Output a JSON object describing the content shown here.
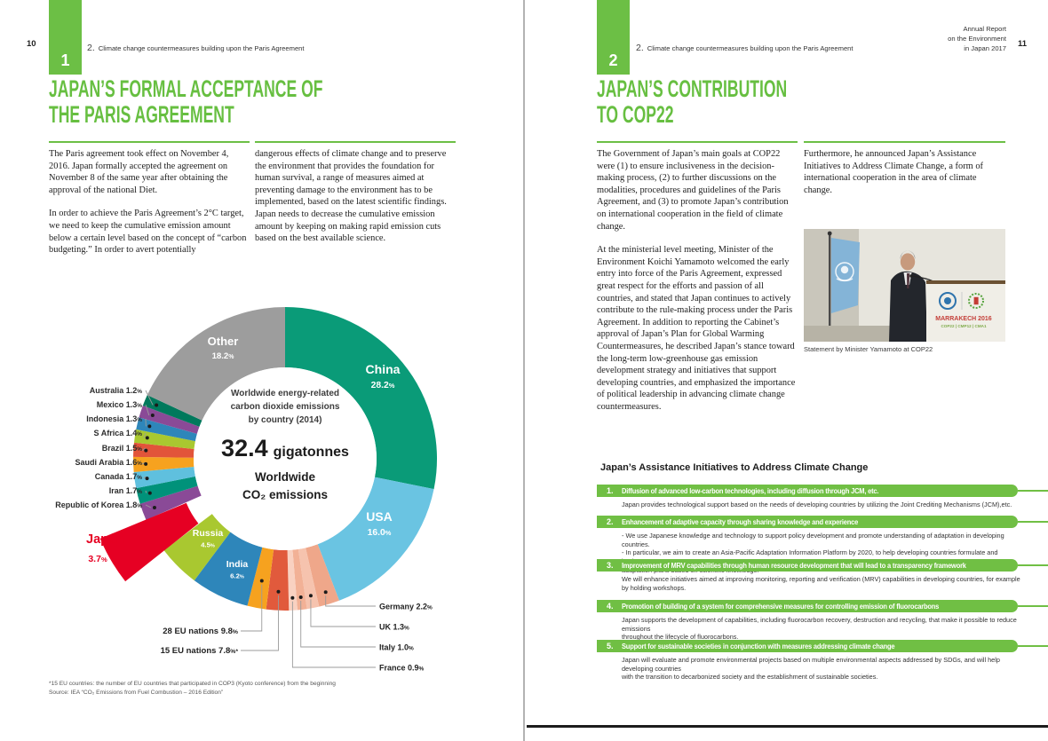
{
  "colors": {
    "accent_green": "#6cbf45",
    "bar_green": "#70bf44",
    "japan_red": "#e60023",
    "gutter_gray": "#b3b3b3",
    "body_text": "#1e1e1e"
  },
  "left_page": {
    "page_number": "10",
    "section_number": "1",
    "running_header_number": "2.",
    "running_header": "Climate change countermeasures building upon the Paris Agreement",
    "title_line1": "JAPAN’S FORMAL ACCEPTANCE OF",
    "title_line2": "THE PARIS AGREEMENT",
    "col1_p1": "The Paris agreement took effect on November 4, 2016. Japan formally accepted the agreement on November 8 of the same year after obtaining the approval of the national Diet.",
    "col1_p2": "In order to achieve the Paris Agreement’s 2°C target, we need to keep the cumulative emission amount below a certain level based on the concept of “carbon budgeting.” In order to avert potentially",
    "col2_p1": "dangerous effects of climate change and to preserve the environment that provides the foundation for human survival, a range of measures aimed at preventing damage to the environment has to be implemented, based on the latest scientific findings. Japan needs to decrease the cumulative emission amount by keeping on making rapid emission cuts based on the best available science.",
    "footnote_line1": "*15 EU countries: the number of EU countries that participated in COP3 (Kyoto conference) from the beginning",
    "footnote_line2": "Source: IEA “CO₂ Emissions from Fuel Combustion – 2016 Edition”"
  },
  "chart_data": {
    "type": "pie",
    "title": "Worldwide energy-related\ncarbon dioxide emissions\nby country (2014)",
    "center_value": "32.4",
    "center_unit": "gigatonnes",
    "center_caption": "Worldwide\nCO₂ emissions",
    "legend_position": "callout labels around donut",
    "note": "pct = share shown on chart; arc = drawn arc segment (EU overlays split into member sub-slices)",
    "slices": [
      {
        "id": "china",
        "label": "China",
        "pct": "28.2",
        "arc": 28.2,
        "color": "#0a9b78",
        "label_pos": "inside"
      },
      {
        "id": "usa",
        "label": "USA",
        "pct": "16.0",
        "arc": 16.0,
        "color": "#6ac4e2",
        "label_pos": "inside"
      },
      {
        "id": "germany",
        "label": "Germany",
        "pct": "2.2",
        "arc": 2.2,
        "color": "#efa78a",
        "label_pos": "right"
      },
      {
        "id": "uk",
        "label": "UK",
        "pct": "1.3",
        "arc": 1.3,
        "color": "#f6c3ae",
        "label_pos": "right"
      },
      {
        "id": "italy",
        "label": "Italy",
        "pct": "1.0",
        "arc": 1.0,
        "color": "#f2b196",
        "label_pos": "right"
      },
      {
        "id": "france",
        "label": "France",
        "pct": "0.9",
        "arc": 0.9,
        "color": "#f9d1c1",
        "label_pos": "right"
      },
      {
        "id": "eu15_rest",
        "label": "15 EU nations",
        "pct": "7.8",
        "suffix": "*",
        "arc": 2.4,
        "color": "#e15a3c",
        "label_pos": "bottom"
      },
      {
        "id": "eu28_rest",
        "label": "28 EU nations",
        "pct": "9.8",
        "arc": 2.0,
        "color": "#f6a21f",
        "label_pos": "bottom"
      },
      {
        "id": "india",
        "label": "India",
        "pct": "6.2",
        "arc": 6.2,
        "color": "#2e86ba",
        "label_pos": "inside"
      },
      {
        "id": "russia",
        "label": "Russia",
        "pct": "4.5",
        "arc": 4.5,
        "color": "#a9c830",
        "label_pos": "inside"
      },
      {
        "id": "japan",
        "label": "Japan",
        "pct": "3.7",
        "arc": 3.7,
        "color": "#e60023",
        "label_pos": "exploded"
      },
      {
        "id": "korea",
        "label": "Republic of Korea",
        "pct": "1.8",
        "arc": 1.8,
        "color": "#8a4a97",
        "label_pos": "left"
      },
      {
        "id": "iran",
        "label": "Iran",
        "pct": "1.7",
        "arc": 1.7,
        "color": "#00927a",
        "label_pos": "left"
      },
      {
        "id": "canada",
        "label": "Canada",
        "pct": "1.7",
        "arc": 1.7,
        "color": "#5fc0de",
        "label_pos": "left"
      },
      {
        "id": "saudi_arabia",
        "label": "Saudi Arabia",
        "pct": "1.6",
        "arc": 1.6,
        "color": "#f6a21f",
        "label_pos": "left"
      },
      {
        "id": "brazil",
        "label": "Brazil",
        "pct": "1.5",
        "arc": 1.5,
        "color": "#e2543a",
        "label_pos": "left"
      },
      {
        "id": "s_africa",
        "label": "S Africa",
        "pct": "1.4",
        "arc": 1.4,
        "color": "#a9c830",
        "label_pos": "left"
      },
      {
        "id": "indonesia",
        "label": "Indonesia",
        "pct": "1.3",
        "arc": 1.3,
        "color": "#2e86ba",
        "label_pos": "left"
      },
      {
        "id": "mexico",
        "label": "Mexico",
        "pct": "1.3",
        "arc": 1.3,
        "color": "#8a4a97",
        "label_pos": "left"
      },
      {
        "id": "australia",
        "label": "Australia",
        "pct": "1.2",
        "arc": 1.2,
        "color": "#00795c",
        "label_pos": "left"
      },
      {
        "id": "other",
        "label": "Other",
        "pct": "18.2",
        "arc": 18.2,
        "color": "#9d9d9d",
        "label_pos": "inside"
      }
    ]
  },
  "right_page": {
    "page_number": "11",
    "section_number": "2",
    "running_header_number": "2.",
    "running_header": "Climate change countermeasures building upon the Paris Agreement",
    "annual_report": "Annual Report\non the Environment\nin Japan 2017",
    "title_line1": "JAPAN’S CONTRIBUTION",
    "title_line2": "TO COP22",
    "col1_p1": "The Government of Japan’s main goals at COP22 were (1) to ensure inclusiveness in the decision-making process, (2) to further discussions on the modalities, procedures and guidelines of the Paris Agreement, and (3) to promote Japan’s contribution on international cooperation in the field of climate change.",
    "col1_p2": "At the ministerial level meeting, Minister of the Environment Koichi Yamamoto welcomed the early entry into force of the Paris Agreement, expressed great respect for the efforts and passion of all countries, and stated that Japan continues to actively contribute to the rule-making process under the Paris Agreement. In addition to reporting the Cabinet’s approval of Japan’s Plan for Global Warming Countermeasures, he described Japan’s stance toward the long-term low-greenhouse gas emission development strategy and initiatives that support developing countries, and emphasized the importance of political leadership in advancing climate change countermeasures.",
    "col2_p1": "Furthermore, he announced Japan’s Assistance Initiatives to Address Climate Change, a form of international cooperation in the area of climate change.",
    "photo": {
      "caption": "Statement by Minister Yamamoto at COP22",
      "podium_line1": "MARRAKECH 2016",
      "podium_line2": "COP22 | CMP12 | CMA1"
    },
    "initiatives": {
      "heading": "Japan’s Assistance Initiatives to Address Climate Change",
      "items": [
        {
          "num": "1.",
          "title": "Diffusion of advanced low-carbon technologies, including diffusion through JCM, etc.",
          "body": [
            "Japan provides technological support based on the needs of developing countries by utilizing the Joint Crediting Mechanisms (JCM),etc."
          ]
        },
        {
          "num": "2.",
          "title": "Enhancement of adaptive capacity through sharing knowledge and experience",
          "body": [
            "- We use Japanese knowledge and technology to support policy development and promote understanding of adaptation in developing countries.",
            "- In particular, we aim to create an Asia-Pacific Adaptation Information Platform by 2020, to help developing countries formulate and implement",
            "  adaptation plans based on scientific knowledge."
          ]
        },
        {
          "num": "3.",
          "title": "Improvement of MRV capabilities through human resource development that will lead to a transparency framework",
          "body": [
            "We will enhance initiatives aimed at improving monitoring, reporting and verification (MRV) capabilities in developing countries, for example",
            "by holding workshops."
          ]
        },
        {
          "num": "4.",
          "title": "Promotion of building of a system for comprehensive measures for controlling emission of fluorocarbons",
          "body": [
            "Japan supports the development of capabilities, including fluorocarbon recovery, destruction and recycling, that make it possible to reduce emissions",
            "throughout the lifecycle of fluorocarbons."
          ]
        },
        {
          "num": "5.",
          "title": "Support for sustainable societies in conjunction with measures addressing climate change",
          "body": [
            "Japan will evaluate and promote environmental projects based on multiple environmental aspects addressed by SDGs, and will help developing countries",
            "with the transition to decarbonized society and the establishment of sustainable societies."
          ]
        }
      ]
    }
  }
}
